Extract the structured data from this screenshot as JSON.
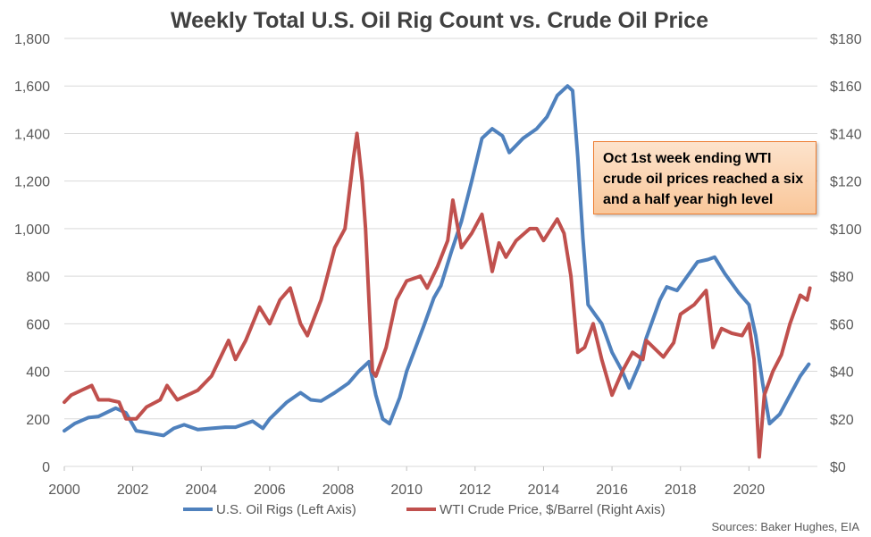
{
  "chart_data": {
    "type": "line",
    "title": "Weekly Total U.S. Oil Rig Count vs. Crude Oil Price",
    "source": "Sources: Baker Hughes, EIA",
    "annotation": "Oct 1st week ending WTI crude oil prices reached a six and a half year high level",
    "xlim": [
      2000,
      2022
    ],
    "x_ticks": [
      "2000",
      "2002",
      "2004",
      "2006",
      "2008",
      "2010",
      "2012",
      "2014",
      "2016",
      "2018",
      "2020"
    ],
    "y_left": {
      "ylim": [
        0,
        1800
      ],
      "ticks": [
        "0",
        "200",
        "400",
        "600",
        "800",
        "1,000",
        "1,200",
        "1,400",
        "1,600",
        "1,800"
      ]
    },
    "y_right": {
      "ylim": [
        0,
        180
      ],
      "ticks": [
        "$0",
        "$20",
        "$40",
        "$60",
        "$80",
        "$100",
        "$120",
        "$140",
        "$160",
        "$180"
      ]
    },
    "legend_position": "bottom",
    "series": [
      {
        "name": "U.S. Oil Rigs (Left Axis)",
        "axis": "left",
        "color": "#4f81bd",
        "points": [
          [
            2000.0,
            150
          ],
          [
            2000.3,
            180
          ],
          [
            2000.7,
            205
          ],
          [
            2001.0,
            210
          ],
          [
            2001.5,
            245
          ],
          [
            2001.8,
            225
          ],
          [
            2002.1,
            150
          ],
          [
            2002.5,
            140
          ],
          [
            2002.9,
            130
          ],
          [
            2003.2,
            160
          ],
          [
            2003.5,
            175
          ],
          [
            2003.9,
            155
          ],
          [
            2004.3,
            160
          ],
          [
            2004.7,
            165
          ],
          [
            2005.0,
            165
          ],
          [
            2005.5,
            190
          ],
          [
            2005.8,
            160
          ],
          [
            2006.0,
            200
          ],
          [
            2006.5,
            270
          ],
          [
            2006.9,
            310
          ],
          [
            2007.2,
            280
          ],
          [
            2007.5,
            275
          ],
          [
            2007.9,
            310
          ],
          [
            2008.3,
            350
          ],
          [
            2008.6,
            400
          ],
          [
            2008.9,
            440
          ],
          [
            2009.1,
            300
          ],
          [
            2009.3,
            200
          ],
          [
            2009.5,
            180
          ],
          [
            2009.8,
            290
          ],
          [
            2010.0,
            400
          ],
          [
            2010.5,
            590
          ],
          [
            2010.8,
            710
          ],
          [
            2011.0,
            760
          ],
          [
            2011.3,
            900
          ],
          [
            2011.6,
            1030
          ],
          [
            2011.9,
            1200
          ],
          [
            2012.2,
            1380
          ],
          [
            2012.5,
            1420
          ],
          [
            2012.8,
            1390
          ],
          [
            2013.0,
            1320
          ],
          [
            2013.4,
            1380
          ],
          [
            2013.8,
            1420
          ],
          [
            2014.1,
            1470
          ],
          [
            2014.4,
            1560
          ],
          [
            2014.7,
            1600
          ],
          [
            2014.85,
            1580
          ],
          [
            2015.0,
            1300
          ],
          [
            2015.15,
            960
          ],
          [
            2015.3,
            680
          ],
          [
            2015.5,
            640
          ],
          [
            2015.7,
            600
          ],
          [
            2016.0,
            480
          ],
          [
            2016.3,
            400
          ],
          [
            2016.5,
            330
          ],
          [
            2016.8,
            430
          ],
          [
            2017.0,
            540
          ],
          [
            2017.4,
            700
          ],
          [
            2017.6,
            755
          ],
          [
            2017.9,
            740
          ],
          [
            2018.2,
            800
          ],
          [
            2018.5,
            860
          ],
          [
            2018.8,
            870
          ],
          [
            2019.0,
            880
          ],
          [
            2019.3,
            810
          ],
          [
            2019.7,
            730
          ],
          [
            2020.0,
            680
          ],
          [
            2020.2,
            550
          ],
          [
            2020.4,
            350
          ],
          [
            2020.6,
            180
          ],
          [
            2020.9,
            220
          ],
          [
            2021.2,
            300
          ],
          [
            2021.5,
            380
          ],
          [
            2021.75,
            430
          ]
        ]
      },
      {
        "name": "WTI Crude Price, $/Barrel (Right Axis)",
        "axis": "right",
        "color": "#c0504d",
        "points": [
          [
            2000.0,
            27
          ],
          [
            2000.2,
            30
          ],
          [
            2000.5,
            32
          ],
          [
            2000.8,
            34
          ],
          [
            2001.0,
            28
          ],
          [
            2001.3,
            28
          ],
          [
            2001.6,
            27
          ],
          [
            2001.8,
            20
          ],
          [
            2002.1,
            20
          ],
          [
            2002.4,
            25
          ],
          [
            2002.8,
            28
          ],
          [
            2003.0,
            34
          ],
          [
            2003.3,
            28
          ],
          [
            2003.6,
            30
          ],
          [
            2003.9,
            32
          ],
          [
            2004.3,
            38
          ],
          [
            2004.8,
            53
          ],
          [
            2005.0,
            45
          ],
          [
            2005.3,
            53
          ],
          [
            2005.7,
            67
          ],
          [
            2006.0,
            60
          ],
          [
            2006.3,
            70
          ],
          [
            2006.6,
            75
          ],
          [
            2006.9,
            60
          ],
          [
            2007.1,
            55
          ],
          [
            2007.5,
            70
          ],
          [
            2007.9,
            92
          ],
          [
            2008.2,
            100
          ],
          [
            2008.45,
            130
          ],
          [
            2008.55,
            140
          ],
          [
            2008.7,
            120
          ],
          [
            2008.8,
            100
          ],
          [
            2008.9,
            70
          ],
          [
            2009.0,
            40
          ],
          [
            2009.1,
            38
          ],
          [
            2009.4,
            50
          ],
          [
            2009.7,
            70
          ],
          [
            2010.0,
            78
          ],
          [
            2010.4,
            80
          ],
          [
            2010.6,
            75
          ],
          [
            2010.9,
            84
          ],
          [
            2011.2,
            95
          ],
          [
            2011.35,
            112
          ],
          [
            2011.6,
            92
          ],
          [
            2011.9,
            98
          ],
          [
            2012.2,
            106
          ],
          [
            2012.5,
            82
          ],
          [
            2012.7,
            94
          ],
          [
            2012.9,
            88
          ],
          [
            2013.2,
            95
          ],
          [
            2013.6,
            100
          ],
          [
            2013.8,
            100
          ],
          [
            2014.0,
            95
          ],
          [
            2014.4,
            104
          ],
          [
            2014.6,
            98
          ],
          [
            2014.8,
            80
          ],
          [
            2015.0,
            48
          ],
          [
            2015.2,
            50
          ],
          [
            2015.45,
            60
          ],
          [
            2015.7,
            45
          ],
          [
            2016.0,
            30
          ],
          [
            2016.3,
            40
          ],
          [
            2016.6,
            48
          ],
          [
            2016.9,
            45
          ],
          [
            2017.0,
            53
          ],
          [
            2017.5,
            46
          ],
          [
            2017.8,
            52
          ],
          [
            2018.0,
            64
          ],
          [
            2018.4,
            68
          ],
          [
            2018.75,
            74
          ],
          [
            2018.95,
            50
          ],
          [
            2019.2,
            58
          ],
          [
            2019.5,
            56
          ],
          [
            2019.8,
            55
          ],
          [
            2020.0,
            60
          ],
          [
            2020.15,
            45
          ],
          [
            2020.3,
            4
          ],
          [
            2020.45,
            30
          ],
          [
            2020.7,
            40
          ],
          [
            2020.95,
            47
          ],
          [
            2021.2,
            60
          ],
          [
            2021.5,
            72
          ],
          [
            2021.7,
            70
          ],
          [
            2021.78,
            75
          ]
        ]
      }
    ]
  }
}
